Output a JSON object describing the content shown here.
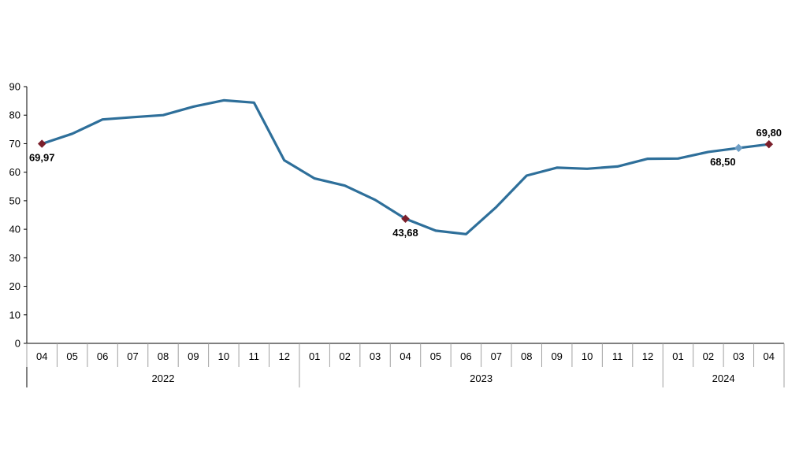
{
  "chart_data": {
    "type": "line",
    "title": "",
    "xlabel": "",
    "ylabel": "",
    "ylim": [
      0,
      90
    ],
    "yticks": [
      "0",
      "10",
      "20",
      "30",
      "40",
      "50",
      "60",
      "70",
      "80",
      "90"
    ],
    "grid": false,
    "legend": "none",
    "categories": [
      "04",
      "05",
      "06",
      "07",
      "08",
      "09",
      "10",
      "11",
      "12",
      "01",
      "02",
      "03",
      "04",
      "05",
      "06",
      "07",
      "08",
      "09",
      "10",
      "11",
      "12",
      "01",
      "02",
      "03",
      "04"
    ],
    "years": [
      {
        "label": "2022",
        "start": 0,
        "end": 8
      },
      {
        "label": "2023",
        "start": 9,
        "end": 20
      },
      {
        "label": "2024",
        "start": 21,
        "end": 24
      }
    ],
    "series": [
      {
        "color": "#2e6f9a",
        "values": [
          69.97,
          73.5,
          78.5,
          79.3,
          80.0,
          83.0,
          85.2,
          84.4,
          64.2,
          57.8,
          55.3,
          50.3,
          43.68,
          39.5,
          38.3,
          47.8,
          58.8,
          61.6,
          61.2,
          62.0,
          64.7,
          64.8,
          67.1,
          68.5,
          69.8
        ]
      }
    ],
    "annotations": [
      {
        "index": 0,
        "text": "69,97",
        "marker_color": "#7a1f2b",
        "placement": "below"
      },
      {
        "index": 12,
        "text": "43,68",
        "marker_color": "#7a1f2b",
        "placement": "below"
      },
      {
        "index": 23,
        "text": "68,50",
        "marker_color": "#6f9fc6",
        "placement": "below-left"
      },
      {
        "index": 24,
        "text": "69,80",
        "marker_color": "#7a1f2b",
        "placement": "above"
      }
    ]
  }
}
